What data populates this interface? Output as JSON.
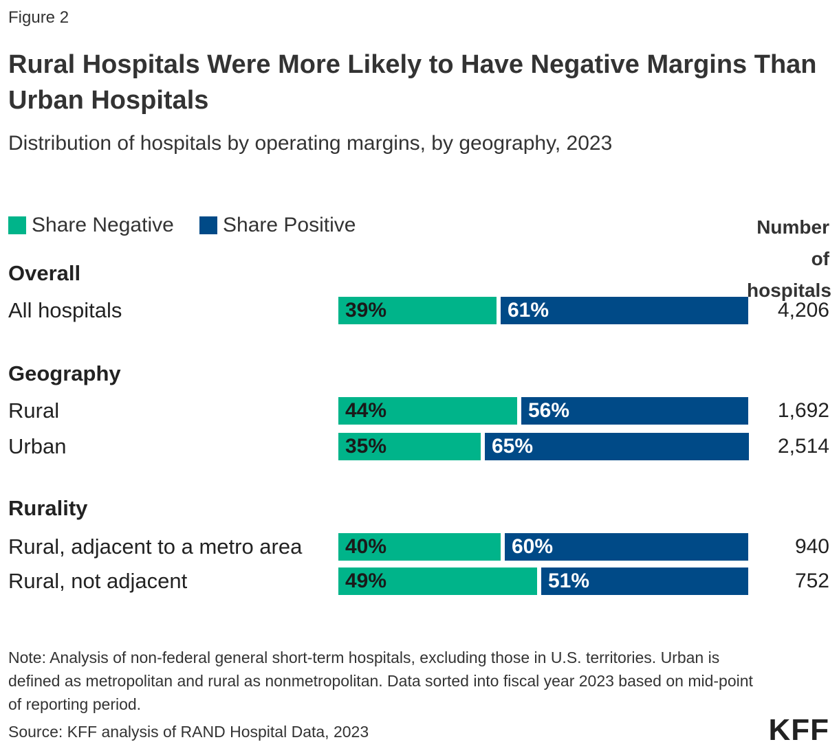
{
  "figure_label": "Figure 2",
  "title": "Rural Hospitals Were More Likely to Have Negative Margins Than Urban Hospitals",
  "subtitle": "Distribution of hospitals by operating margins, by geography, 2023",
  "legend": [
    {
      "label": "Share Negative",
      "color": "#00b48a"
    },
    {
      "label": "Share Positive",
      "color": "#004a87"
    }
  ],
  "count_header": "Number of hospitals",
  "note": "Note: Analysis of non-federal general short-term hospitals, excluding those in U.S. territories. Urban is defined as metropolitan and rural as nonmetropolitan. Data sorted into fiscal year 2023 based on mid-point of reporting period.",
  "source": "Source: KFF analysis of RAND Hospital Data, 2023",
  "logo_text": "KFF",
  "chart_data": {
    "type": "bar",
    "orientation": "horizontal",
    "stacked": true,
    "title": "Rural Hospitals Were More Likely to Have Negative Margins Than Urban Hospitals",
    "subtitle": "Distribution of hospitals by operating margins, by geography, 2023",
    "xlim": [
      0,
      100
    ],
    "unit": "%",
    "series": [
      {
        "name": "Share Negative",
        "color": "#00b48a",
        "label_color": "#1a1a1a"
      },
      {
        "name": "Share Positive",
        "color": "#004a87",
        "label_color": "#ffffff"
      }
    ],
    "groups": [
      {
        "label": "Overall",
        "rows": [
          {
            "label": "All hospitals",
            "values": [
              39,
              61
            ],
            "count": "4,206"
          }
        ]
      },
      {
        "label": "Geography",
        "rows": [
          {
            "label": "Rural",
            "values": [
              44,
              56
            ],
            "count": "1,692"
          },
          {
            "label": "Urban",
            "values": [
              35,
              65
            ],
            "count": "2,514"
          }
        ]
      },
      {
        "label": "Rurality",
        "rows": [
          {
            "label": "Rural, adjacent to a metro area",
            "values": [
              40,
              60
            ],
            "count": "940"
          },
          {
            "label": "Rural, not adjacent",
            "values": [
              49,
              51
            ],
            "count": "752"
          }
        ]
      }
    ]
  }
}
